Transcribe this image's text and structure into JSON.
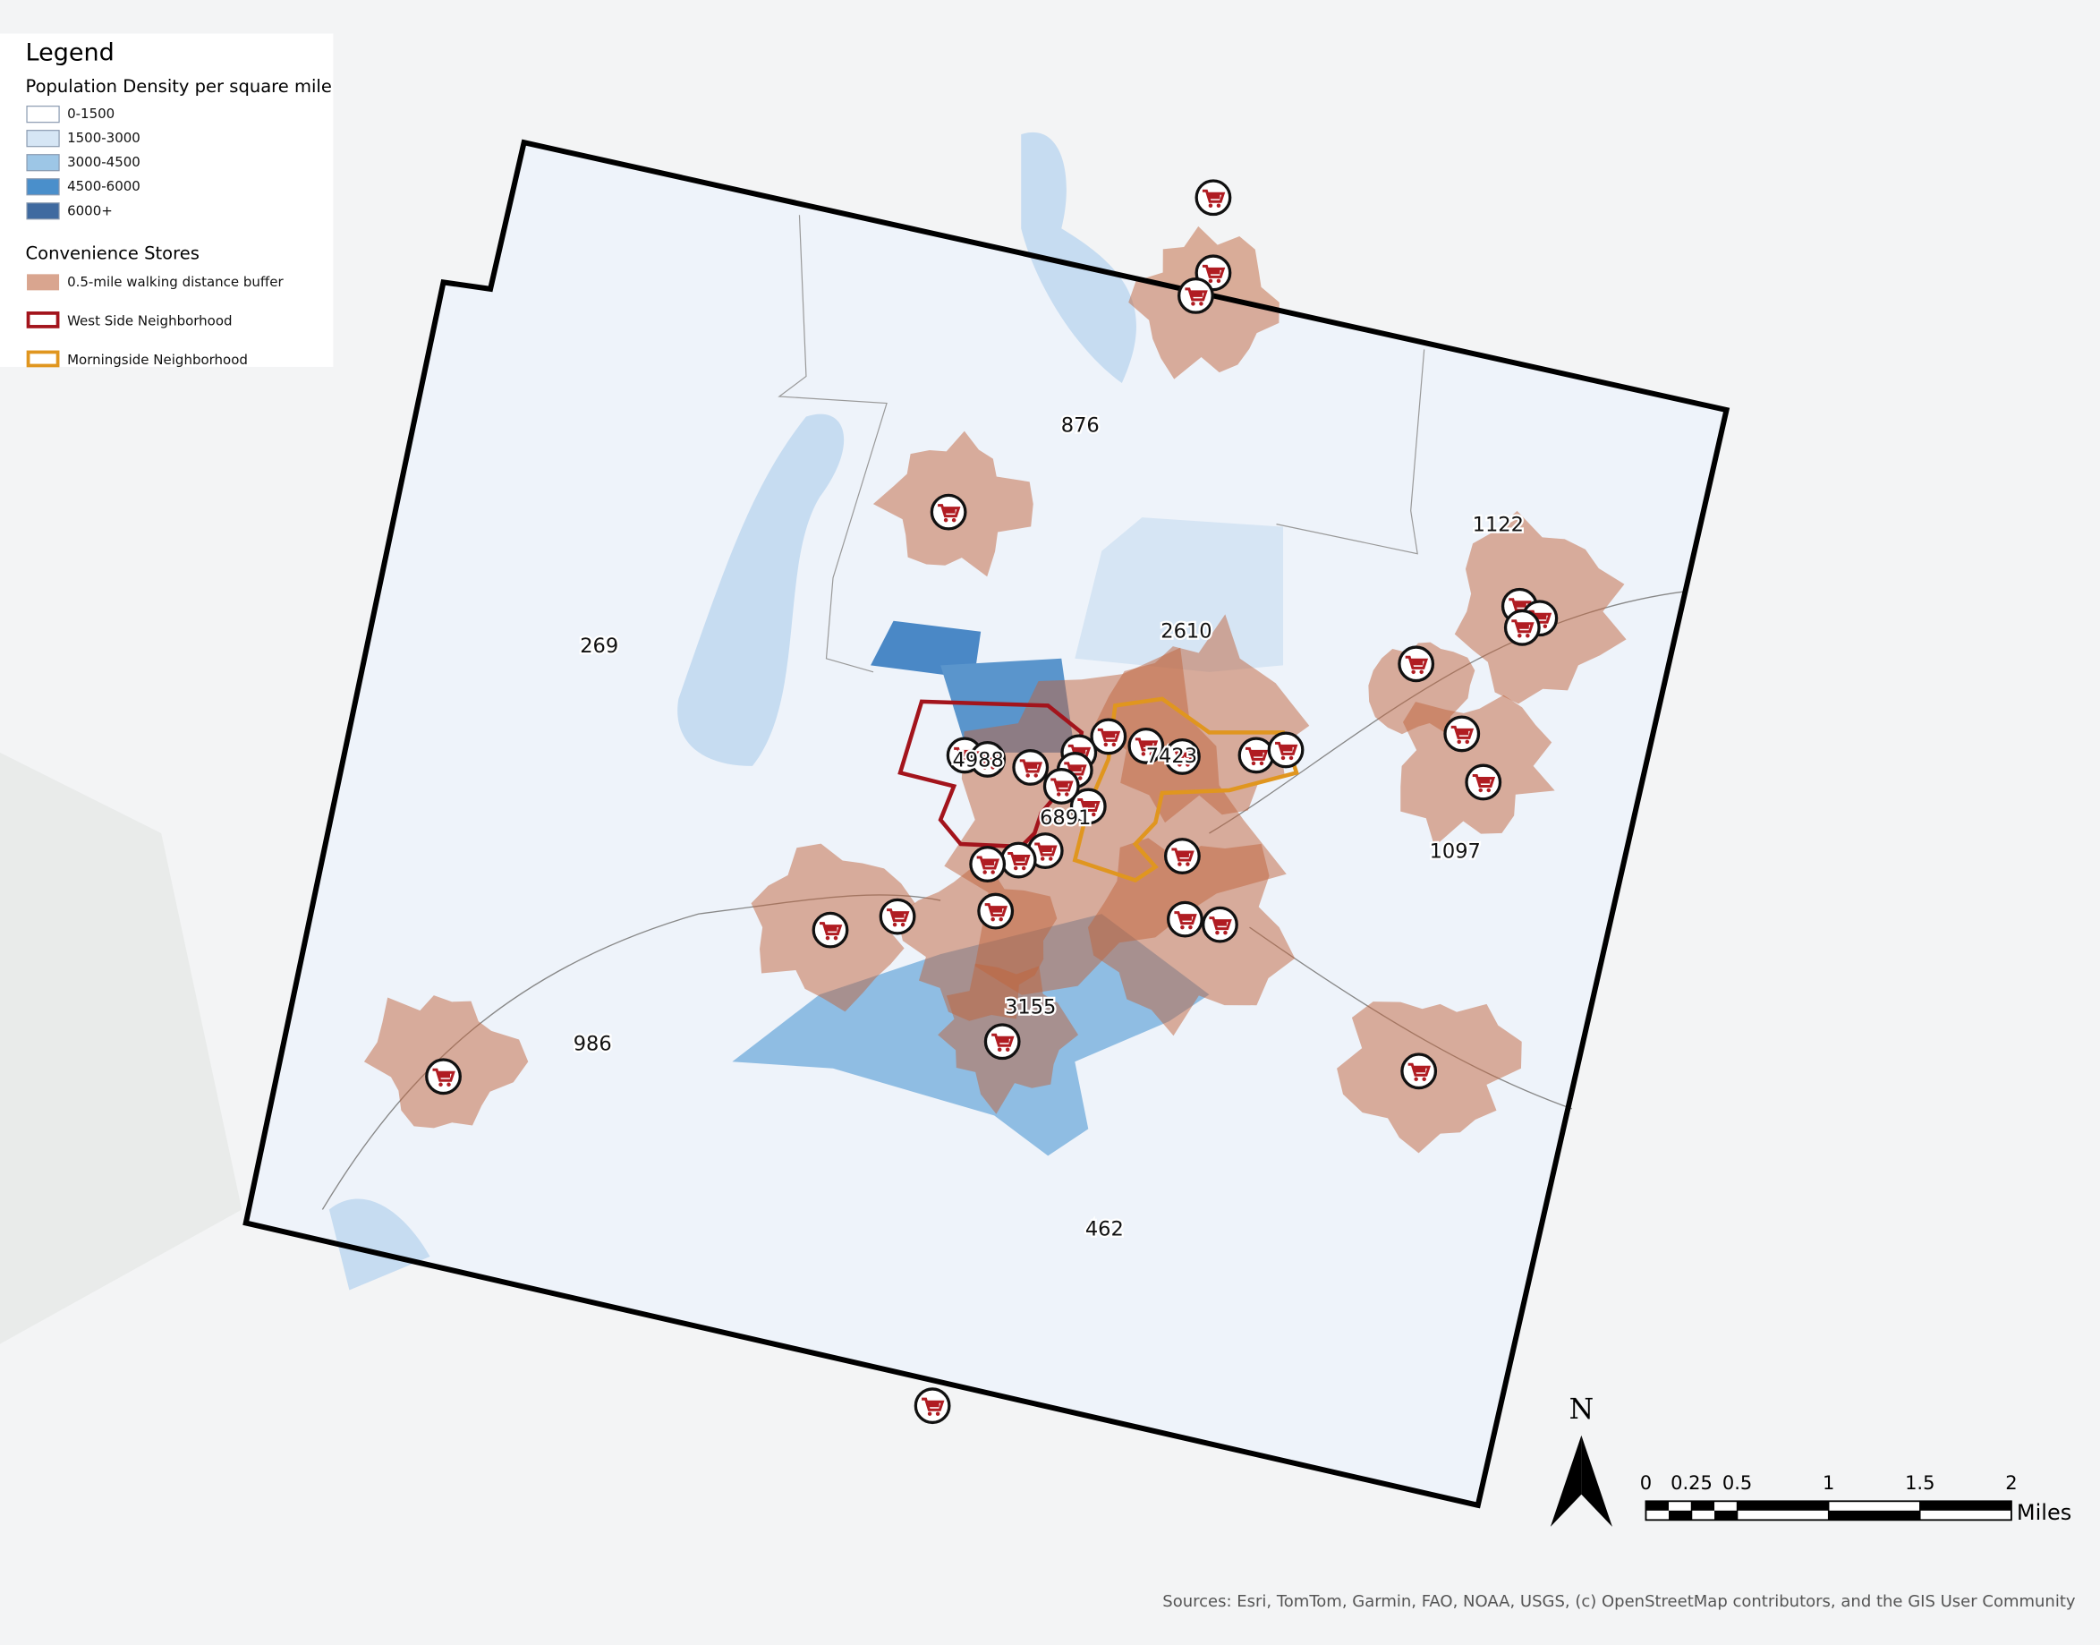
{
  "legend": {
    "title": "Legend",
    "density_title": "Population Density per square mile",
    "density_classes": [
      "0-1500",
      "1500-3000",
      "3000-4500",
      "4500-6000",
      "6000+"
    ],
    "stores_title": "Convenience Stores",
    "buffer": "0.5-mile walking distance buffer",
    "west_side": "West Side Neighborhood",
    "morningside": "Morningside Neighborhood"
  },
  "map_labels": [
    876,
    1122,
    269,
    2610,
    4988,
    7423,
    6891,
    1097,
    986,
    3155,
    462
  ],
  "north": "N",
  "scale_bar": {
    "ticks": [
      0,
      0.25,
      0.5,
      1,
      1.5,
      2
    ],
    "unit": "Miles"
  },
  "sources": "Sources:  Esri, TomTom, Garmin, FAO, NOAA, USGS, (c) OpenStreetMap contributors, and the GIS User Community"
}
